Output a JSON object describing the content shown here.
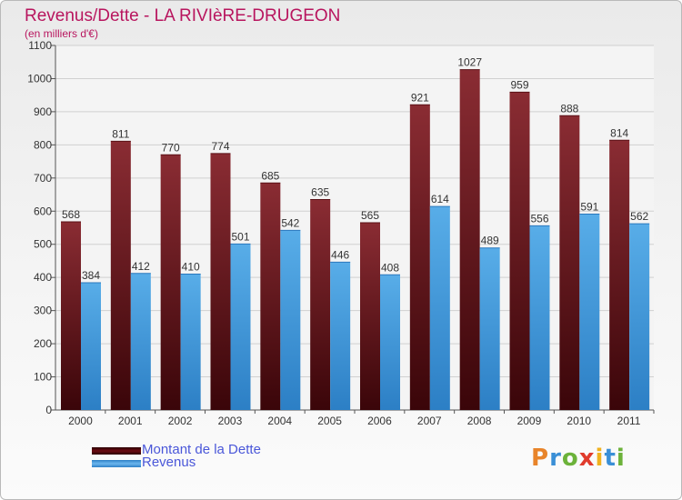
{
  "title": "Revenus/Dette - LA RIVIèRE-DRUGEON",
  "subtitle": "(en milliers d'€)",
  "colors": {
    "dette": "#7a1f27",
    "revenus": "#4f9fe0",
    "title": "#b8155e",
    "legend_text": "#4a57d9"
  },
  "legend": [
    {
      "label": "Montant de la Dette",
      "color": "#5a0a10"
    },
    {
      "label": "Revenus",
      "color": "#3f93d9"
    }
  ],
  "logo": {
    "text": "Proxiti"
  },
  "chart_data": {
    "type": "bar",
    "title": "Revenus/Dette - LA RIVIèRE-DRUGEON",
    "ylabel": "(en milliers d'€)",
    "xlabel": "",
    "ylim": [
      0,
      1100
    ],
    "yticks": [
      0,
      100,
      200,
      300,
      400,
      500,
      600,
      700,
      800,
      900,
      1000,
      1100
    ],
    "grid": true,
    "legend_position": "bottom-left",
    "categories": [
      "2000",
      "2001",
      "2002",
      "2003",
      "2004",
      "2005",
      "2006",
      "2007",
      "2008",
      "2009",
      "2010",
      "2011"
    ],
    "series": [
      {
        "name": "Montant de la Dette",
        "values": [
          568,
          811,
          770,
          774,
          685,
          635,
          565,
          921,
          1027,
          959,
          888,
          814
        ]
      },
      {
        "name": "Revenus",
        "values": [
          384,
          412,
          410,
          501,
          542,
          446,
          408,
          614,
          489,
          556,
          591,
          562
        ]
      }
    ]
  }
}
